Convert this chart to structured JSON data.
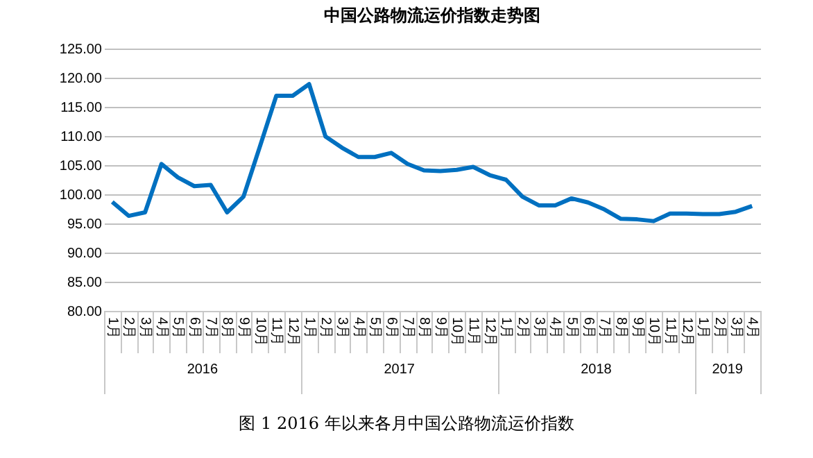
{
  "chart_data": {
    "type": "line",
    "title": "中国公路物流运价指数走势图",
    "categories": [
      "1月",
      "2月",
      "3月",
      "4月",
      "5月",
      "6月",
      "7月",
      "8月",
      "9月",
      "10月",
      "11月",
      "12月",
      "1月",
      "2月",
      "3月",
      "4月",
      "5月",
      "6月",
      "7月",
      "8月",
      "9月",
      "10月",
      "11月",
      "12月",
      "1月",
      "2月",
      "3月",
      "4月",
      "5月",
      "6月",
      "7月",
      "8月",
      "9月",
      "10月",
      "11月",
      "12月",
      "1月",
      "2月",
      "3月",
      "4月"
    ],
    "series": [
      {
        "color": "#0070c0",
        "values": [
          98.7,
          96.3,
          96.9,
          105.2,
          102.9,
          101.4,
          101.6,
          96.9,
          99.6,
          108.2,
          116.9,
          116.9,
          118.9,
          109.9,
          108.0,
          106.4,
          106.4,
          107.1,
          105.2,
          104.1,
          104.0,
          104.2,
          104.7,
          103.3,
          102.5,
          99.6,
          98.1,
          98.1,
          99.3,
          98.6,
          97.4,
          95.8,
          95.7,
          95.4,
          96.7,
          96.7,
          96.6,
          96.6,
          97.0,
          98.0
        ]
      }
    ],
    "ylim": [
      80,
      125
    ],
    "yticks": [
      {
        "value": 80,
        "label": "80.00"
      },
      {
        "value": 85,
        "label": "85.00"
      },
      {
        "value": 90,
        "label": "90.00"
      },
      {
        "value": 95,
        "label": "95.00"
      },
      {
        "value": 100,
        "label": "100.00"
      },
      {
        "value": 105,
        "label": "105.00"
      },
      {
        "value": 110,
        "label": "110.00"
      },
      {
        "value": 115,
        "label": "115.00"
      },
      {
        "value": 120,
        "label": "120.00"
      },
      {
        "value": 125,
        "label": "125.00"
      }
    ],
    "grid": "y",
    "marker": "none",
    "line_style": "solid",
    "annotations": [
      "2016",
      "2017",
      "2018",
      "2019",
      "图 1   2016 年以来各月中国公路物流运价指数"
    ]
  }
}
